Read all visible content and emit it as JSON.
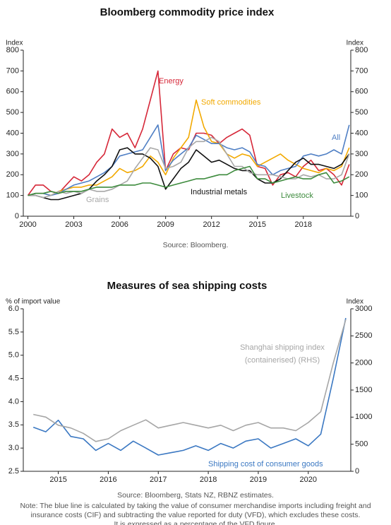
{
  "chart_data": [
    {
      "type": "line",
      "title": "Bloomberg commodity price index",
      "y_label": "Index",
      "y2_label": "Index",
      "source": "Source: Bloomberg.",
      "x": [
        2000,
        2000.5,
        2001,
        2001.5,
        2002,
        2002.5,
        2003,
        2003.5,
        2004,
        2004.5,
        2005,
        2005.5,
        2006,
        2006.5,
        2007,
        2007.5,
        2008,
        2008.5,
        2009,
        2009.5,
        2010,
        2010.5,
        2011,
        2011.5,
        2012,
        2012.5,
        2013,
        2013.5,
        2014,
        2014.5,
        2015,
        2015.5,
        2016,
        2016.5,
        2017,
        2017.5,
        2018,
        2018.5,
        2019,
        2019.5,
        2020,
        2020.5,
        2021
      ],
      "xlim": [
        1999.7,
        2021.1
      ],
      "xticks": [
        2000,
        2003,
        2006,
        2009,
        2012,
        2015,
        2018
      ],
      "ylim": [
        0,
        800
      ],
      "yticks": [
        0,
        100,
        200,
        300,
        400,
        500,
        600,
        700,
        800
      ],
      "y2lim": [
        0,
        800
      ],
      "y2ticks": [
        0,
        100,
        200,
        300,
        400,
        500,
        600,
        700,
        800
      ],
      "series": [
        {
          "name": "Energy",
          "color": "#d62839",
          "values": [
            100,
            150,
            150,
            120,
            110,
            150,
            190,
            170,
            200,
            260,
            300,
            420,
            380,
            400,
            330,
            420,
            560,
            700,
            220,
            300,
            330,
            320,
            400,
            400,
            390,
            350,
            380,
            400,
            420,
            390,
            240,
            230,
            150,
            200,
            210,
            190,
            240,
            270,
            220,
            230,
            200,
            150,
            250
          ]
        },
        {
          "name": "Soft commodities",
          "color": "#f2a900",
          "values": [
            100,
            110,
            110,
            100,
            120,
            130,
            140,
            140,
            150,
            150,
            170,
            190,
            230,
            210,
            220,
            240,
            290,
            260,
            200,
            280,
            330,
            380,
            560,
            430,
            360,
            350,
            300,
            280,
            300,
            290,
            240,
            260,
            280,
            300,
            270,
            250,
            230,
            220,
            210,
            230,
            220,
            240,
            330
          ]
        },
        {
          "name": "All",
          "color": "#4f7fc4",
          "values": [
            100,
            110,
            110,
            100,
            110,
            130,
            150,
            160,
            170,
            190,
            210,
            240,
            290,
            300,
            310,
            320,
            380,
            440,
            220,
            270,
            300,
            330,
            390,
            370,
            350,
            350,
            330,
            320,
            330,
            310,
            250,
            240,
            200,
            220,
            230,
            240,
            290,
            300,
            290,
            300,
            320,
            300,
            440
          ]
        },
        {
          "name": "Industrial metals",
          "color": "#111111",
          "values": [
            100,
            100,
            90,
            80,
            80,
            90,
            100,
            110,
            130,
            170,
            200,
            240,
            320,
            330,
            300,
            300,
            280,
            240,
            130,
            180,
            230,
            260,
            320,
            290,
            260,
            270,
            250,
            230,
            220,
            220,
            180,
            160,
            160,
            180,
            220,
            260,
            280,
            250,
            250,
            240,
            230,
            250,
            300
          ]
        },
        {
          "name": "Grains",
          "color": "#a8a8a8",
          "values": [
            100,
            100,
            90,
            100,
            120,
            110,
            120,
            110,
            130,
            120,
            120,
            130,
            150,
            170,
            230,
            280,
            330,
            320,
            230,
            240,
            260,
            330,
            360,
            360,
            380,
            360,
            300,
            240,
            240,
            210,
            200,
            200,
            200,
            190,
            180,
            180,
            200,
            190,
            200,
            180,
            180,
            200,
            300
          ]
        },
        {
          "name": "Livestock",
          "color": "#3d8b3d",
          "values": [
            100,
            110,
            110,
            120,
            110,
            120,
            120,
            120,
            130,
            140,
            140,
            140,
            150,
            150,
            150,
            160,
            160,
            150,
            140,
            150,
            160,
            170,
            180,
            180,
            190,
            200,
            200,
            220,
            230,
            240,
            180,
            180,
            160,
            170,
            180,
            190,
            180,
            180,
            200,
            210,
            160,
            170,
            190
          ]
        }
      ]
    },
    {
      "type": "line",
      "title": "Measures of sea shipping costs",
      "y_label": "% of import value",
      "y2_label": "Index",
      "source": "Source: Bloomberg, Stats NZ, RBNZ estimates.",
      "note": [
        "Note: The blue line is calculated by taking the value of consumer merchandise imports including freight and",
        "insurance costs (CIF) and subtracting the value reported for duty (VFD), which excludes these costs.",
        "It is expressed as a percentage of the VFD figure."
      ],
      "x": [
        2014.5,
        2014.75,
        2015,
        2015.25,
        2015.5,
        2015.75,
        2016,
        2016.25,
        2016.5,
        2016.75,
        2017,
        2017.25,
        2017.5,
        2017.75,
        2018,
        2018.25,
        2018.5,
        2018.75,
        2019,
        2019.25,
        2019.5,
        2019.75,
        2020,
        2020.25,
        2020.5,
        2020.75
      ],
      "xlim": [
        2014.3,
        2020.85
      ],
      "xticks": [
        2015,
        2016,
        2017,
        2018,
        2019,
        2020
      ],
      "ylim": [
        2.5,
        6.0
      ],
      "yticks": [
        2.5,
        {
          "value": 3.0,
          "label": "3.0"
        },
        3.5,
        {
          "value": 4.0,
          "label": "4.0"
        },
        4.5,
        {
          "value": 5.0,
          "label": "5.0"
        },
        5.5,
        {
          "value": 6.0,
          "label": "6.0"
        }
      ],
      "y2lim": [
        0,
        3000
      ],
      "y2ticks": [
        0,
        500,
        1000,
        1500,
        2000,
        2500,
        3000
      ],
      "series": [
        {
          "name": "Shipping cost of consumer goods",
          "color": "#3b78c2",
          "values": [
            3.45,
            3.35,
            3.6,
            3.25,
            3.2,
            2.95,
            3.1,
            2.95,
            3.15,
            3.0,
            2.85,
            2.9,
            2.95,
            3.05,
            2.95,
            3.1,
            3.0,
            3.15,
            3.2,
            3.0,
            3.1,
            3.2,
            3.05,
            3.3,
            4.5,
            5.8
          ]
        },
        {
          "name": "Shanghai shipping index (containerised) (RHS)",
          "color": "#a6a6a6",
          "axis": "y2",
          "values": [
            1050,
            1000,
            850,
            800,
            700,
            550,
            600,
            750,
            850,
            950,
            800,
            850,
            900,
            850,
            800,
            850,
            750,
            850,
            900,
            800,
            800,
            750,
            900,
            1100,
            2000,
            2800
          ]
        }
      ]
    }
  ]
}
